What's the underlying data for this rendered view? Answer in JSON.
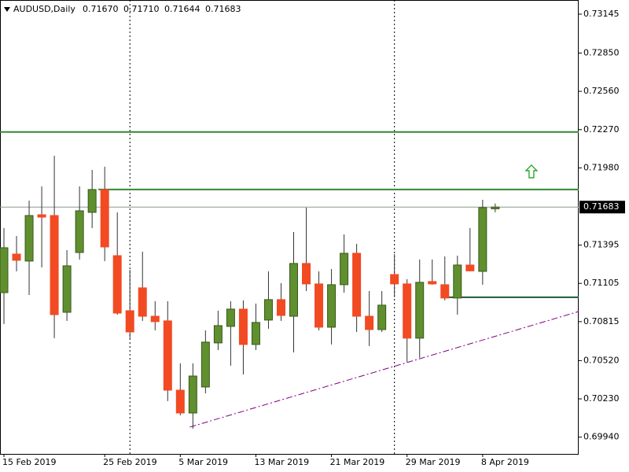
{
  "chart_data": {
    "type": "candlestick",
    "title": "AUDUSD,Daily",
    "title_values": [
      "0.71670",
      "0.71710",
      "0.71644",
      "0.71683"
    ],
    "categories": [
      "15 Feb 2019",
      null,
      null,
      null,
      null,
      null,
      null,
      null,
      "25 Feb 2019",
      null,
      null,
      null,
      null,
      null,
      "5 Mar 2019",
      null,
      null,
      null,
      null,
      null,
      "13 Mar 2019",
      null,
      null,
      null,
      null,
      null,
      "21 Mar 2019",
      null,
      null,
      null,
      null,
      null,
      "29 Mar 2019",
      null,
      null,
      null,
      null,
      null,
      "8 Apr 2019",
      null
    ],
    "open": [
      0.71035,
      0.71327,
      0.71274,
      0.71625,
      0.71619,
      0.70886,
      0.71339,
      0.71643,
      0.71816,
      0.71315,
      0.70898,
      0.71071,
      0.70856,
      0.70821,
      0.70296,
      0.70123,
      0.7032,
      0.70654,
      0.70779,
      0.7091,
      0.70642,
      0.70827,
      0.70982,
      0.70856,
      0.71256,
      0.71101,
      0.70773,
      0.71095,
      0.71333,
      0.70856,
      0.70755,
      0.71172,
      0.71101,
      0.7069,
      0.71119,
      0.71095,
      0.70994,
      0.71244,
      0.71196,
      0.7167
    ],
    "high": [
      0.71524,
      0.71464,
      0.71732,
      0.7184,
      0.72072,
      0.71357,
      0.7184,
      0.71965,
      0.71989,
      0.71643,
      0.71208,
      0.71345,
      0.7097,
      0.7097,
      0.70499,
      0.70499,
      0.70749,
      0.70898,
      0.7097,
      0.70976,
      0.70952,
      0.71196,
      0.71107,
      0.71494,
      0.71679,
      0.71196,
      0.71214,
      0.71476,
      0.71405,
      0.71047,
      0.71047,
      0.71327,
      0.71137,
      0.71286,
      0.71286,
      0.71309,
      0.71315,
      0.71524,
      0.71738,
      0.7171
    ],
    "low": [
      0.70797,
      0.71196,
      0.71017,
      0.71226,
      0.7069,
      0.70821,
      0.71286,
      0.71524,
      0.71274,
      0.70868,
      0.7069,
      0.70821,
      0.70749,
      0.70213,
      0.70105,
      0.70004,
      0.70272,
      0.706,
      0.70481,
      0.70415,
      0.706,
      0.70761,
      0.70821,
      0.70582,
      0.71047,
      0.70749,
      0.70642,
      0.71035,
      0.70737,
      0.7063,
      0.70737,
      0.71,
      0.70511,
      0.70541,
      0.71095,
      0.70976,
      0.70868,
      0.71196,
      0.71095,
      0.71644
    ],
    "close": [
      0.71375,
      0.7128,
      0.71619,
      0.71607,
      0.70868,
      0.71238,
      0.71655,
      0.71816,
      0.71381,
      0.7088,
      0.70737,
      0.70856,
      0.70815,
      0.70296,
      0.70123,
      0.70403,
      0.7066,
      0.70785,
      0.7091,
      0.70642,
      0.70809,
      0.70982,
      0.70862,
      0.71256,
      0.71101,
      0.70773,
      0.71095,
      0.71333,
      0.70856,
      0.70755,
      0.7094,
      0.71101,
      0.7069,
      0.71113,
      0.71101,
      0.70994,
      0.71244,
      0.712,
      0.71679,
      0.71683
    ],
    "up_color": "#5f8f2f",
    "down_color": "#f24a22",
    "xlim": [
      -0.3125,
      45.625
    ],
    "ylim": [
      0.69813,
      0.73252
    ],
    "yticks": [
      0.73145,
      {
        "value": 0.7285,
        "label": "0.72850"
      },
      {
        "value": 0.7256,
        "label": "0.72560"
      },
      {
        "value": 0.7227,
        "label": "0.72270"
      },
      {
        "value": 0.7198,
        "label": "0.71980"
      },
      0.71395,
      0.71105,
      0.70815,
      {
        "value": 0.7052,
        "label": "0.70520"
      },
      {
        "value": 0.7023,
        "label": "0.70230"
      },
      {
        "value": 0.6994,
        "label": "0.69940"
      }
    ],
    "current_price": {
      "value": 0.71683,
      "label": "0.71683"
    },
    "levels": [
      {
        "value": 0.72252,
        "from": -0.3125,
        "color": "#2e8b2e"
      },
      {
        "value": 0.71816,
        "from": 7.5,
        "color": "#2e8b2e"
      },
      {
        "value": 0.71,
        "from": 35,
        "color": "#1e5a3a"
      }
    ],
    "separators": [
      10,
      31
    ],
    "trendline": {
      "x": [
        14.75,
        45.625
      ],
      "y": [
        0.70016,
        0.70892
      ],
      "color": "#800080"
    },
    "arrow": {
      "x": 41.875,
      "y": 0.71953,
      "color": "#22a022"
    }
  }
}
